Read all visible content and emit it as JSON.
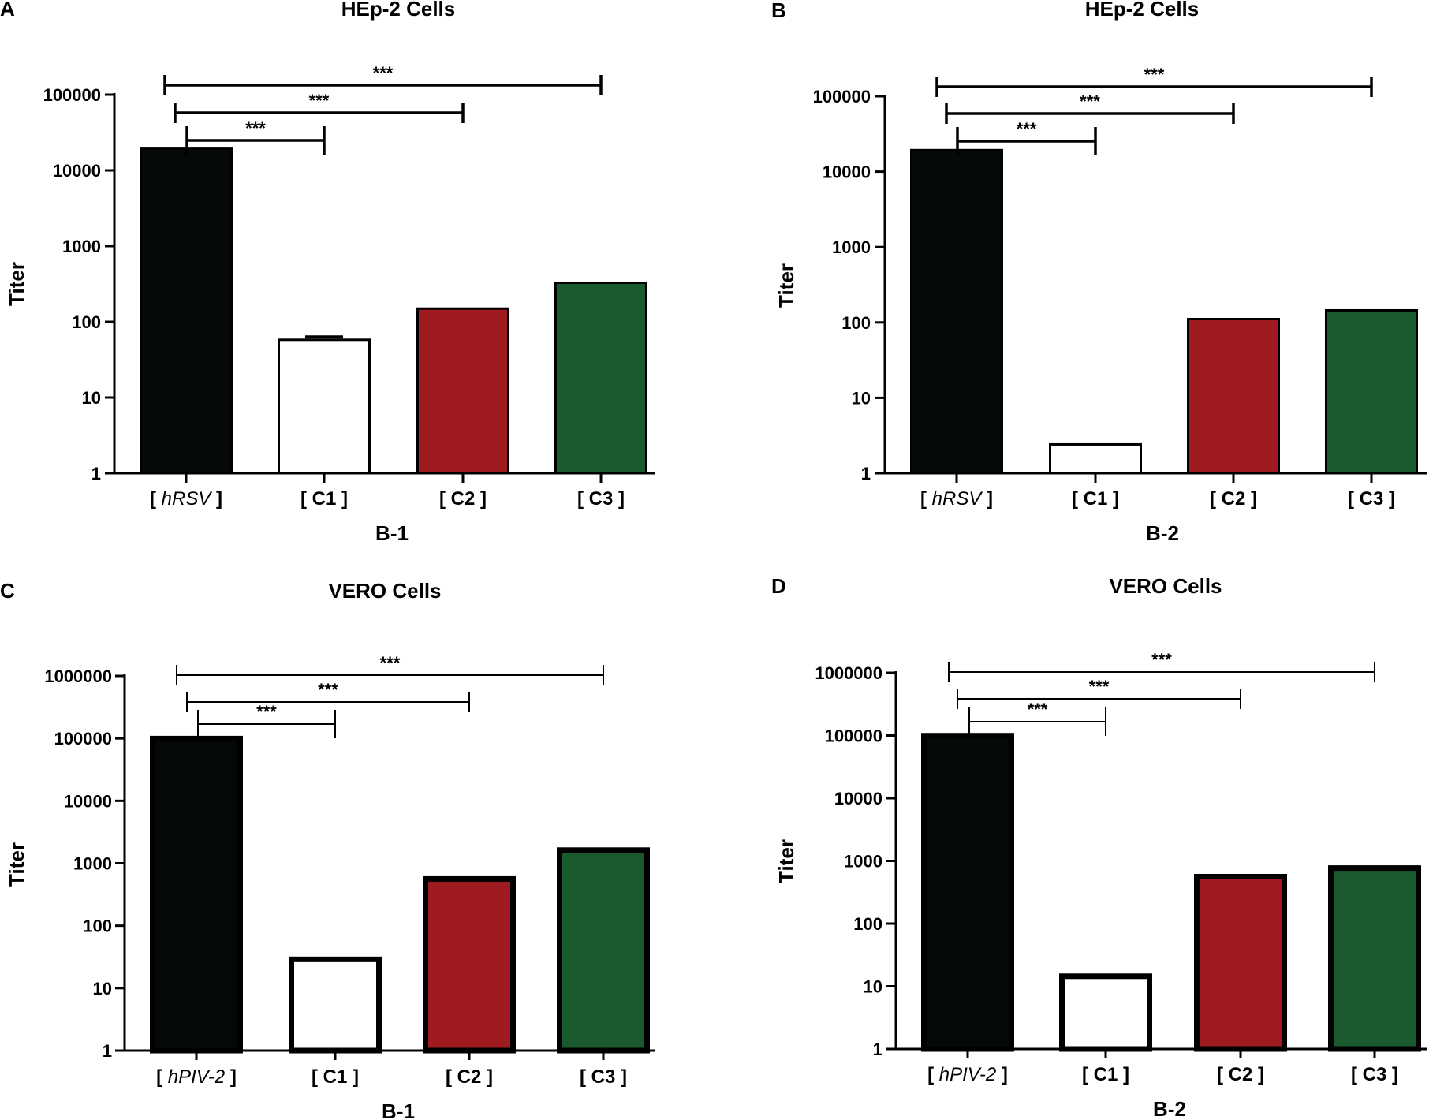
{
  "chart_data": [
    {
      "panel": "A",
      "type": "bar",
      "title": "HEp-2 Cells",
      "ylabel": "Titer",
      "xlabel": "B-1",
      "yscale": "log",
      "ylim": [
        1,
        100000
      ],
      "yticks": [
        "1",
        "10",
        "100",
        "1000",
        "10000",
        "100000"
      ],
      "categories": [
        {
          "open": "[ ",
          "name": "hRSV",
          "close": " ]",
          "italic": true
        },
        {
          "open": "[ ",
          "name": "C1",
          "close": " ]",
          "italic": false
        },
        {
          "open": "[ ",
          "name": "C2",
          "close": " ]",
          "italic": false
        },
        {
          "open": "[ ",
          "name": "C3",
          "close": " ]",
          "italic": false
        }
      ],
      "values": [
        20000,
        60,
        155,
        340
      ],
      "colors": [
        "#050a08",
        "#ffffff",
        "#9e1b20",
        "#1b5a2f"
      ],
      "significance": [
        {
          "from": 0,
          "to": 1,
          "label": "***"
        },
        {
          "from": 0,
          "to": 2,
          "label": "***"
        },
        {
          "from": 0,
          "to": 3,
          "label": "***"
        }
      ]
    },
    {
      "panel": "B",
      "type": "bar",
      "title": "HEp-2 Cells",
      "ylabel": "Titer",
      "xlabel": "B-2",
      "yscale": "log",
      "ylim": [
        1,
        100000
      ],
      "yticks": [
        "1",
        "10",
        "100",
        "1000",
        "10000",
        "100000"
      ],
      "categories": [
        {
          "open": "[ ",
          "name": "hRSV",
          "close": " ]",
          "italic": true
        },
        {
          "open": "[ ",
          "name": "C1",
          "close": " ]",
          "italic": false
        },
        {
          "open": "[ ",
          "name": "C2",
          "close": " ]",
          "italic": false
        },
        {
          "open": "[ ",
          "name": "C3",
          "close": " ]",
          "italic": false
        }
      ],
      "values": [
        20000,
        2.5,
        115,
        150
      ],
      "colors": [
        "#050a08",
        "#ffffff",
        "#9e1b20",
        "#1b5a2f"
      ],
      "significance": [
        {
          "from": 0,
          "to": 1,
          "label": "***"
        },
        {
          "from": 0,
          "to": 2,
          "label": "***"
        },
        {
          "from": 0,
          "to": 3,
          "label": "***"
        }
      ]
    },
    {
      "panel": "C",
      "type": "bar",
      "title": "VERO Cells",
      "ylabel": "Titer",
      "xlabel": "B-1",
      "yscale": "log",
      "ylim": [
        1,
        1000000
      ],
      "yticks": [
        "1",
        "10",
        "100",
        "1000",
        "10000",
        "100000",
        "1000000"
      ],
      "categories": [
        {
          "open": "[ ",
          "name": "hPIV-2",
          "close": " ]",
          "italic": true
        },
        {
          "open": "[ ",
          "name": "C1",
          "close": " ]",
          "italic": false
        },
        {
          "open": "[ ",
          "name": "C2",
          "close": " ]",
          "italic": false
        },
        {
          "open": "[ ",
          "name": "C3",
          "close": " ]",
          "italic": false
        }
      ],
      "values": [
        110000,
        32,
        620,
        1800
      ],
      "colors": [
        "#050a08",
        "#ffffff",
        "#9e1b20",
        "#1b5a2f"
      ],
      "significance": [
        {
          "from": 0,
          "to": 1,
          "label": "***"
        },
        {
          "from": 0,
          "to": 2,
          "label": "***"
        },
        {
          "from": 0,
          "to": 3,
          "label": "***"
        }
      ]
    },
    {
      "panel": "D",
      "type": "bar",
      "title": "VERO Cells",
      "ylabel": "Titer",
      "xlabel": "B-2",
      "yscale": "log",
      "ylim": [
        1,
        1000000
      ],
      "yticks": [
        "1",
        "10",
        "100",
        "1000",
        "10000",
        "100000",
        "1000000"
      ],
      "categories": [
        {
          "open": "[ ",
          "name": "hPIV-2",
          "close": " ]",
          "italic": true
        },
        {
          "open": "[ ",
          "name": "C1",
          "close": " ]",
          "italic": false
        },
        {
          "open": "[ ",
          "name": "C2",
          "close": " ]",
          "italic": false
        },
        {
          "open": "[ ",
          "name": "C3",
          "close": " ]",
          "italic": false
        }
      ],
      "values": [
        110000,
        16,
        620,
        850
      ],
      "colors": [
        "#050a08",
        "#ffffff",
        "#9e1b20",
        "#1b5a2f"
      ],
      "significance": [
        {
          "from": 0,
          "to": 1,
          "label": "***"
        },
        {
          "from": 0,
          "to": 2,
          "label": "***"
        },
        {
          "from": 0,
          "to": 3,
          "label": "***"
        }
      ]
    }
  ]
}
